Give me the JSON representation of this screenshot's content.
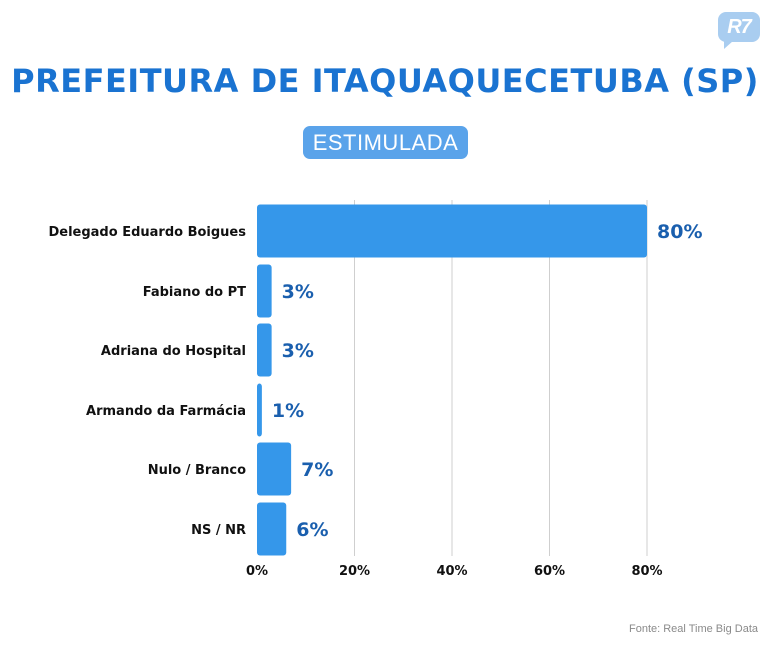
{
  "logo": "R7",
  "title": "PREFEITURA DE ITAQUAQUECETUBA (SP)",
  "subtitle": "ESTIMULADA",
  "source": "Fonte: Real Time Big Data",
  "colors": {
    "bar": "#3597ea",
    "value_label": "#1a5fae",
    "title": "#1a73d1",
    "grid": "#cfcfcf"
  },
  "chart_data": {
    "type": "bar",
    "orientation": "horizontal",
    "categories": [
      "Delegado Eduardo Boigues",
      "Fabiano do PT",
      "Adriana do Hospital",
      "Armando da Farmácia",
      "Nulo / Branco",
      "NS / NR"
    ],
    "values": [
      80,
      3,
      3,
      1,
      7,
      6
    ],
    "value_labels": [
      "80%",
      "3%",
      "3%",
      "1%",
      "7%",
      "6%"
    ],
    "xlim": [
      0,
      80
    ],
    "xticks": [
      0,
      20,
      40,
      60,
      80
    ],
    "xtick_labels": [
      "0%",
      "20%",
      "40%",
      "60%",
      "80%"
    ],
    "grid": true
  }
}
